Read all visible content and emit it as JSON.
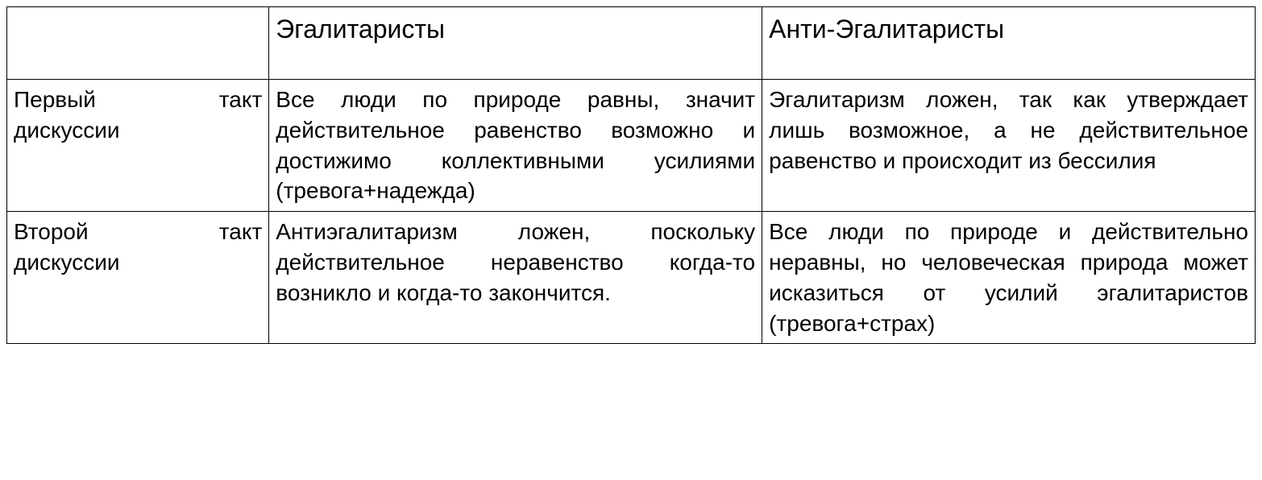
{
  "table": {
    "type": "table",
    "border_color": "#000000",
    "background_color": "#ffffff",
    "text_color": "#000000",
    "header_fontsize": 32,
    "body_fontsize": 28,
    "columns": [
      {
        "label": "",
        "width_pct": 21
      },
      {
        "label": "Эгалитаристы",
        "width_pct": 39.5
      },
      {
        "label": "Анти-Эгалитаристы",
        "width_pct": 39.5
      }
    ],
    "rows": [
      {
        "label_line1": "Первый такт",
        "label_line2": "дискуссии",
        "cells": [
          "Все люди по природе равны, значит действительное равенство возможно и достижимо коллективными усилиями (тревога+надежда)",
          "Эгалитаризм ложен, так как утверждает лишь возможное, а не действительное равенство и происходит из бессилия"
        ]
      },
      {
        "label_line1": "Второй такт",
        "label_line2": "дискуссии",
        "cells": [
          "Антиэгалитаризм ложен, поскольку действительное неравенство когда-то возникло и когда-то закончится.",
          "Все люди по природе и действительно неравны, но человеческая природа может исказиться от усилий эгалитаристов (тревога+страх)"
        ]
      }
    ]
  }
}
